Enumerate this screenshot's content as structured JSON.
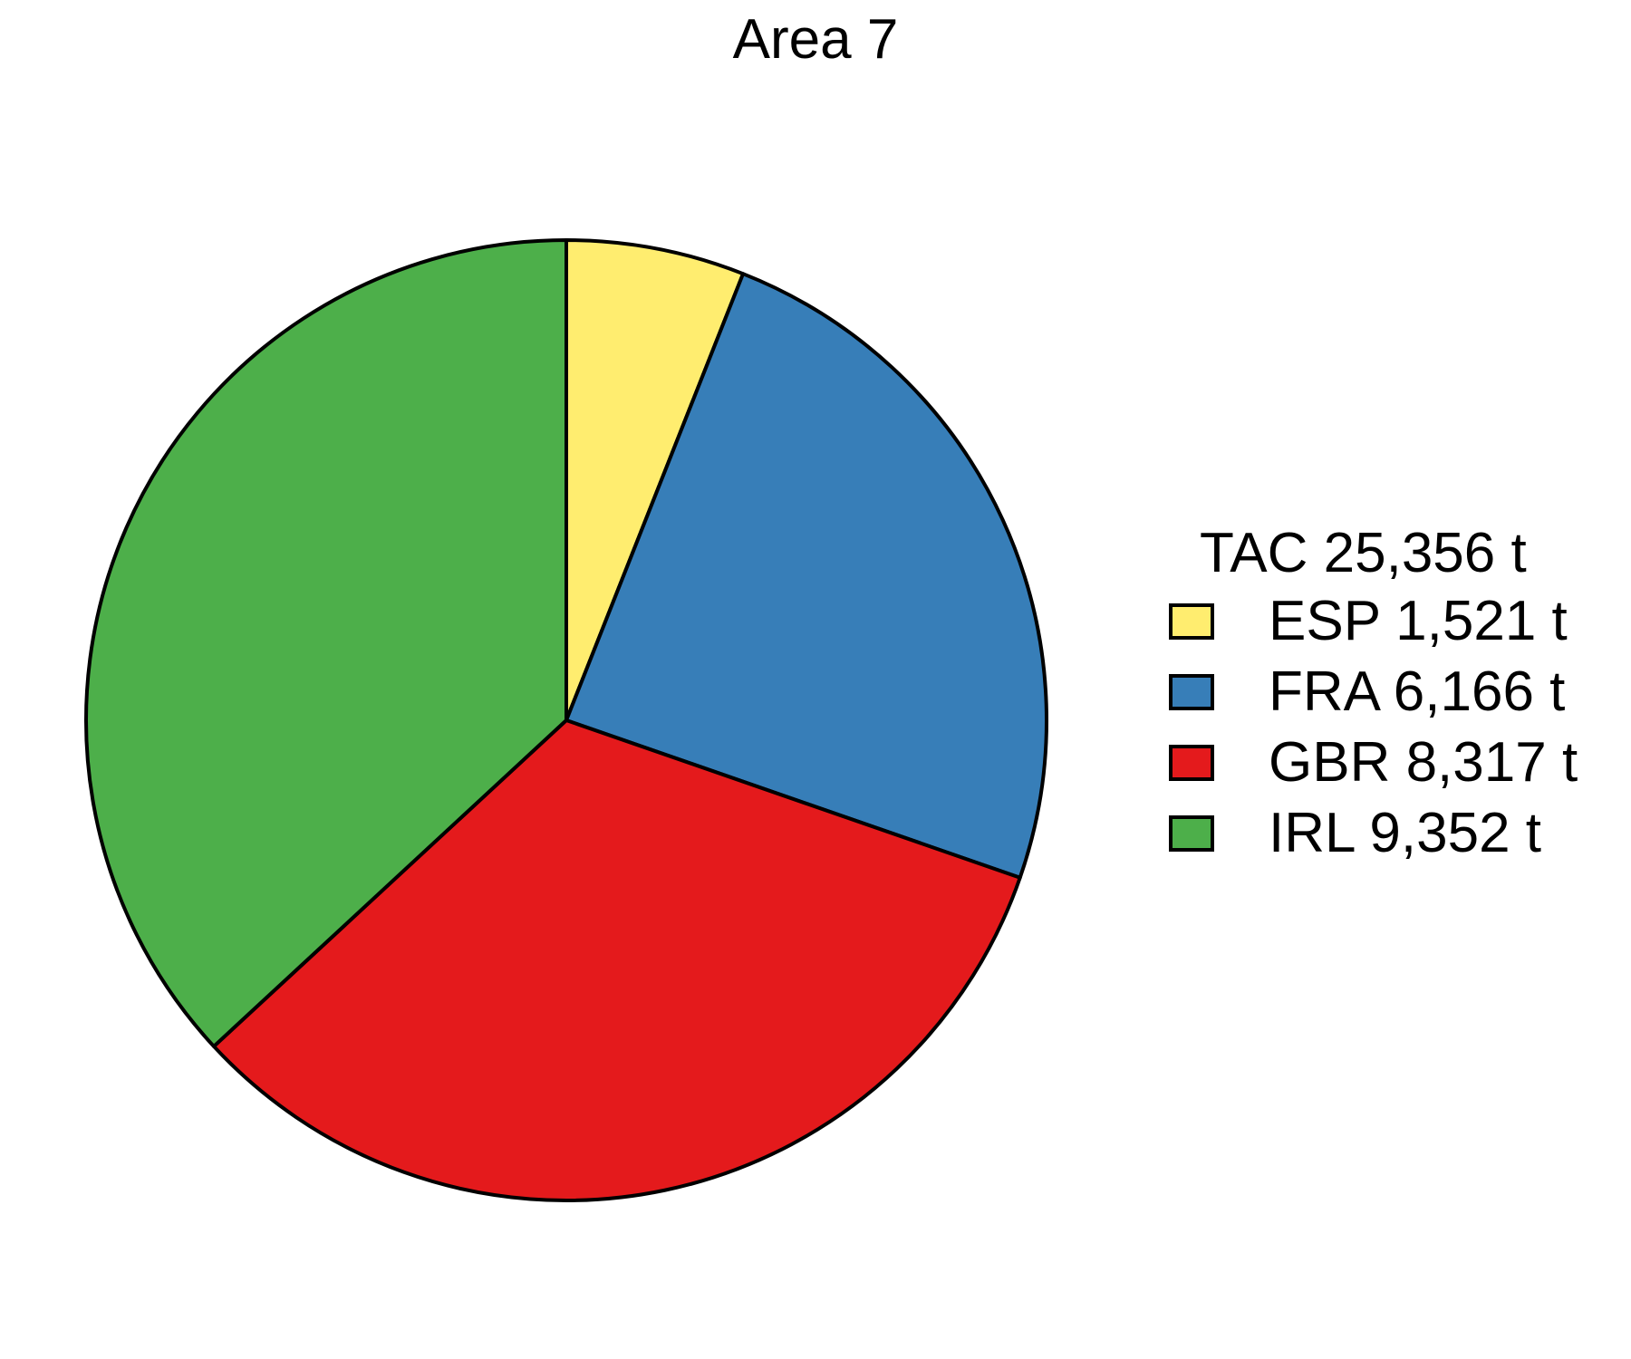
{
  "chart_data": {
    "type": "pie",
    "title": "Area 7",
    "legend_title": "TAC 25,356 t",
    "legend_position": "right",
    "start_angle": "12 o'clock",
    "direction": "clockwise",
    "slices": [
      {
        "name": "ESP",
        "value": 1521,
        "label": "ESP 1,521 t",
        "color": "#FFED6F"
      },
      {
        "name": "FRA",
        "value": 6166,
        "label": "FRA 6,166 t",
        "color": "#377EB8"
      },
      {
        "name": "GBR",
        "value": 8317,
        "label": "GBR 8,317 t",
        "color": "#E41A1C"
      },
      {
        "name": "IRL",
        "value": 9352,
        "label": "IRL 9,352 t",
        "color": "#4DAF4A"
      }
    ],
    "total": 25356,
    "unit": "t"
  }
}
